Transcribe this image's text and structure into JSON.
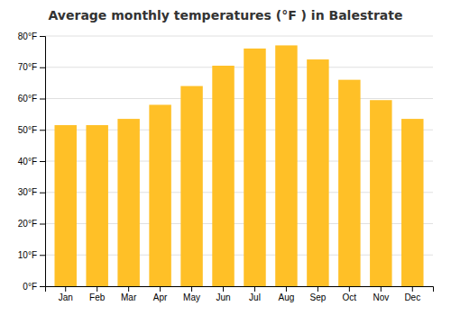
{
  "chart_data": {
    "type": "bar",
    "title": "Average monthly temperatures (°F ) in Balestrate",
    "categories": [
      "Jan",
      "Feb",
      "Mar",
      "Apr",
      "May",
      "Jun",
      "Jul",
      "Aug",
      "Sep",
      "Oct",
      "Nov",
      "Dec"
    ],
    "values": [
      51.5,
      51.5,
      53.5,
      58,
      64,
      70.5,
      76,
      77,
      72.5,
      66,
      59.5,
      53.5
    ],
    "color": "#FFC027",
    "ylim": [
      0,
      80
    ],
    "yticks": [
      {
        "value": 0,
        "label": "0°F"
      },
      {
        "value": 10,
        "label": "10°F"
      },
      {
        "value": 20,
        "label": "20°F"
      },
      {
        "value": 30,
        "label": "30°F"
      },
      {
        "value": 40,
        "label": "40°F"
      },
      {
        "value": 50,
        "label": "50°F"
      },
      {
        "value": 60,
        "label": "60°F"
      },
      {
        "value": 70,
        "label": "70°F"
      },
      {
        "value": 80,
        "label": "80°F"
      }
    ],
    "grid": true
  }
}
